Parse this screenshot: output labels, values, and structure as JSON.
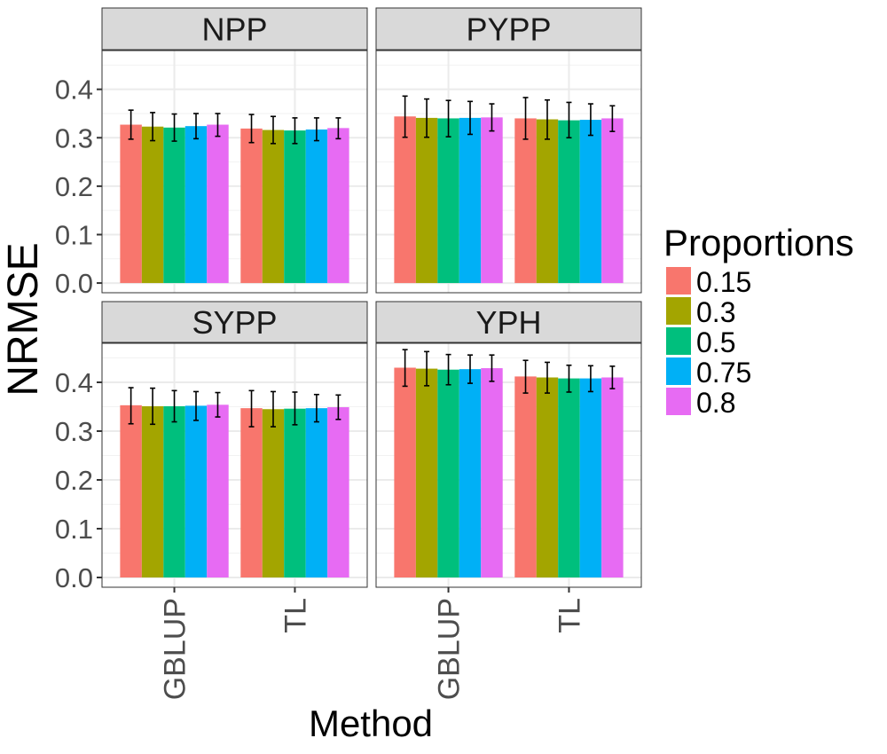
{
  "chart_data": {
    "type": "bar",
    "layout": "facet-grid-2x2",
    "xlabel": "Method",
    "ylabel": "NRMSE",
    "ylim": [
      -0.02,
      0.48
    ],
    "yticks": [
      "0.0",
      "0.1",
      "0.2",
      "0.3",
      "0.4"
    ],
    "ytick_values": [
      0,
      0.1,
      0.2,
      0.3,
      0.4
    ],
    "categories": [
      "GBLUP",
      "TL"
    ],
    "grid": true,
    "legend": {
      "title": "Proportions",
      "position": "right",
      "entries": [
        "0.15",
        "0.3",
        "0.5",
        "0.75",
        "0.8"
      ],
      "colors": [
        "#F8766D",
        "#A3A500",
        "#00BF7D",
        "#00B0F6",
        "#E76BF3"
      ]
    },
    "panels": [
      {
        "title": "NPP",
        "series": [
          {
            "name": "0.15",
            "values": [
              0.327,
              0.319
            ],
            "err_low": [
              0.297,
              0.29
            ],
            "err_high": [
              0.357,
              0.348
            ]
          },
          {
            "name": "0.3",
            "values": [
              0.323,
              0.316
            ],
            "err_low": [
              0.294,
              0.288
            ],
            "err_high": [
              0.352,
              0.344
            ]
          },
          {
            "name": "0.5",
            "values": [
              0.321,
              0.315
            ],
            "err_low": [
              0.293,
              0.288
            ],
            "err_high": [
              0.349,
              0.341
            ]
          },
          {
            "name": "0.75",
            "values": [
              0.324,
              0.317
            ],
            "err_low": [
              0.298,
              0.294
            ],
            "err_high": [
              0.35,
              0.341
            ]
          },
          {
            "name": "0.8",
            "values": [
              0.327,
              0.32
            ],
            "err_low": [
              0.303,
              0.298
            ],
            "err_high": [
              0.35,
              0.341
            ]
          }
        ]
      },
      {
        "title": "PYPP",
        "series": [
          {
            "name": "0.15",
            "values": [
              0.344,
              0.34
            ],
            "err_low": [
              0.301,
              0.297
            ],
            "err_high": [
              0.386,
              0.383
            ]
          },
          {
            "name": "0.3",
            "values": [
              0.341,
              0.338
            ],
            "err_low": [
              0.301,
              0.297
            ],
            "err_high": [
              0.38,
              0.378
            ]
          },
          {
            "name": "0.5",
            "values": [
              0.34,
              0.336
            ],
            "err_low": [
              0.302,
              0.3
            ],
            "err_high": [
              0.377,
              0.373
            ]
          },
          {
            "name": "0.75",
            "values": [
              0.341,
              0.337
            ],
            "err_low": [
              0.307,
              0.305
            ],
            "err_high": [
              0.375,
              0.37
            ]
          },
          {
            "name": "0.8",
            "values": [
              0.342,
              0.34
            ],
            "err_low": [
              0.314,
              0.313
            ],
            "err_high": [
              0.37,
              0.366
            ]
          }
        ]
      },
      {
        "title": "SYPP",
        "series": [
          {
            "name": "0.15",
            "values": [
              0.353,
              0.347
            ],
            "err_low": [
              0.315,
              0.309
            ],
            "err_high": [
              0.389,
              0.383
            ]
          },
          {
            "name": "0.3",
            "values": [
              0.351,
              0.345
            ],
            "err_low": [
              0.314,
              0.309
            ],
            "err_high": [
              0.388,
              0.381
            ]
          },
          {
            "name": "0.5",
            "values": [
              0.351,
              0.346
            ],
            "err_low": [
              0.319,
              0.313
            ],
            "err_high": [
              0.383,
              0.38
            ]
          },
          {
            "name": "0.75",
            "values": [
              0.352,
              0.347
            ],
            "err_low": [
              0.322,
              0.319
            ],
            "err_high": [
              0.381,
              0.375
            ]
          },
          {
            "name": "0.8",
            "values": [
              0.354,
              0.349
            ],
            "err_low": [
              0.329,
              0.324
            ],
            "err_high": [
              0.379,
              0.374
            ]
          }
        ]
      },
      {
        "title": "YPH",
        "series": [
          {
            "name": "0.15",
            "values": [
              0.43,
              0.412
            ],
            "err_low": [
              0.392,
              0.378
            ],
            "err_high": [
              0.467,
              0.445
            ]
          },
          {
            "name": "0.3",
            "values": [
              0.428,
              0.41
            ],
            "err_low": [
              0.393,
              0.378
            ],
            "err_high": [
              0.463,
              0.441
            ]
          },
          {
            "name": "0.5",
            "values": [
              0.426,
              0.408
            ],
            "err_low": [
              0.395,
              0.38
            ],
            "err_high": [
              0.457,
              0.435
            ]
          },
          {
            "name": "0.75",
            "values": [
              0.427,
              0.408
            ],
            "err_low": [
              0.398,
              0.381
            ],
            "err_high": [
              0.456,
              0.434
            ]
          },
          {
            "name": "0.8",
            "values": [
              0.429,
              0.41
            ],
            "err_low": [
              0.402,
              0.387
            ],
            "err_high": [
              0.456,
              0.433
            ]
          }
        ]
      }
    ]
  }
}
